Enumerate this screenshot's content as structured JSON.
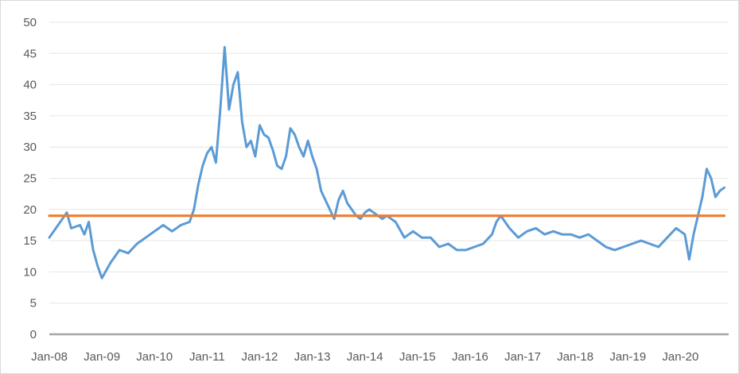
{
  "chart_data": {
    "type": "line",
    "title": "",
    "xlabel": "",
    "ylabel": "",
    "ylim": [
      0,
      50
    ],
    "yticks": [
      0,
      5,
      10,
      15,
      20,
      25,
      30,
      35,
      40,
      45,
      50
    ],
    "xticks": [
      "Jan-08",
      "Jan-09",
      "Jan-10",
      "Jan-11",
      "Jan-12",
      "Jan-13",
      "Jan-14",
      "Jan-15",
      "Jan-16",
      "Jan-17",
      "Jan-18",
      "Jan-19",
      "Jan-20"
    ],
    "grid": "horizontal",
    "legend": "none",
    "series": [
      {
        "color": "#5B9BD5",
        "x": [
          "2008-01",
          "2008-03",
          "2008-05",
          "2008-06",
          "2008-08",
          "2008-09",
          "2008-10",
          "2008-11",
          "2008-12",
          "2009-01",
          "2009-03",
          "2009-05",
          "2009-07",
          "2009-09",
          "2009-11",
          "2010-01",
          "2010-03",
          "2010-05",
          "2010-07",
          "2010-09",
          "2010-10",
          "2010-11",
          "2010-12",
          "2011-01",
          "2011-02",
          "2011-03",
          "2011-04",
          "2011-05",
          "2011-06",
          "2011-07",
          "2011-08",
          "2011-09",
          "2011-10",
          "2011-11",
          "2011-12",
          "2012-01",
          "2012-02",
          "2012-03",
          "2012-04",
          "2012-05",
          "2012-06",
          "2012-07",
          "2012-08",
          "2012-09",
          "2012-10",
          "2012-11",
          "2012-12",
          "2013-01",
          "2013-02",
          "2013-03",
          "2013-04",
          "2013-05",
          "2013-06",
          "2013-07",
          "2013-08",
          "2013-09",
          "2013-10",
          "2013-11",
          "2013-12",
          "2014-01",
          "2014-02",
          "2014-03",
          "2014-04",
          "2014-05",
          "2014-06",
          "2014-08",
          "2014-10",
          "2014-12",
          "2015-02",
          "2015-04",
          "2015-06",
          "2015-08",
          "2015-10",
          "2015-12",
          "2016-02",
          "2016-04",
          "2016-06",
          "2016-07",
          "2016-08",
          "2016-09",
          "2016-10",
          "2016-12",
          "2017-02",
          "2017-04",
          "2017-06",
          "2017-08",
          "2017-10",
          "2017-12",
          "2018-02",
          "2018-04",
          "2018-06",
          "2018-08",
          "2018-10",
          "2018-12",
          "2019-02",
          "2019-04",
          "2019-06",
          "2019-08",
          "2019-10",
          "2019-12",
          "2020-02",
          "2020-03",
          "2020-04",
          "2020-05",
          "2020-06",
          "2020-07",
          "2020-08",
          "2020-09",
          "2020-10",
          "2020-11"
        ],
        "values": [
          15.5,
          17.5,
          19.5,
          17.0,
          17.5,
          16.0,
          18.0,
          13.5,
          11.0,
          9.0,
          11.5,
          13.5,
          13.0,
          14.5,
          15.5,
          16.5,
          17.5,
          16.5,
          17.5,
          18.0,
          20.0,
          24.0,
          27.0,
          29.0,
          30.0,
          27.5,
          36.0,
          46.0,
          36.0,
          40.0,
          42.0,
          34.0,
          30.0,
          31.0,
          28.5,
          33.5,
          32.0,
          31.5,
          29.5,
          27.0,
          26.5,
          28.5,
          33.0,
          32.0,
          30.0,
          28.5,
          31.0,
          28.5,
          26.5,
          23.0,
          21.5,
          20.0,
          18.5,
          21.5,
          23.0,
          21.0,
          20.0,
          19.0,
          18.5,
          19.5,
          20.0,
          19.5,
          19.0,
          18.5,
          19.0,
          18.0,
          15.5,
          16.5,
          15.5,
          15.5,
          14.0,
          14.5,
          13.5,
          13.5,
          14.0,
          14.5,
          16.0,
          18.0,
          19.0,
          18.0,
          17.0,
          15.5,
          16.5,
          17.0,
          16.0,
          16.5,
          16.0,
          16.0,
          15.5,
          16.0,
          15.0,
          14.0,
          13.5,
          14.0,
          14.5,
          15.0,
          14.5,
          14.0,
          15.5,
          17.0,
          16.0,
          12.0,
          16.0,
          19.0,
          22.0,
          26.5,
          25.0,
          22.0,
          23.0,
          23.5
        ]
      },
      {
        "color": "#ED7D31",
        "x": [
          "2008-01",
          "2020-11"
        ],
        "values": [
          19.0,
          19.0
        ]
      }
    ]
  }
}
